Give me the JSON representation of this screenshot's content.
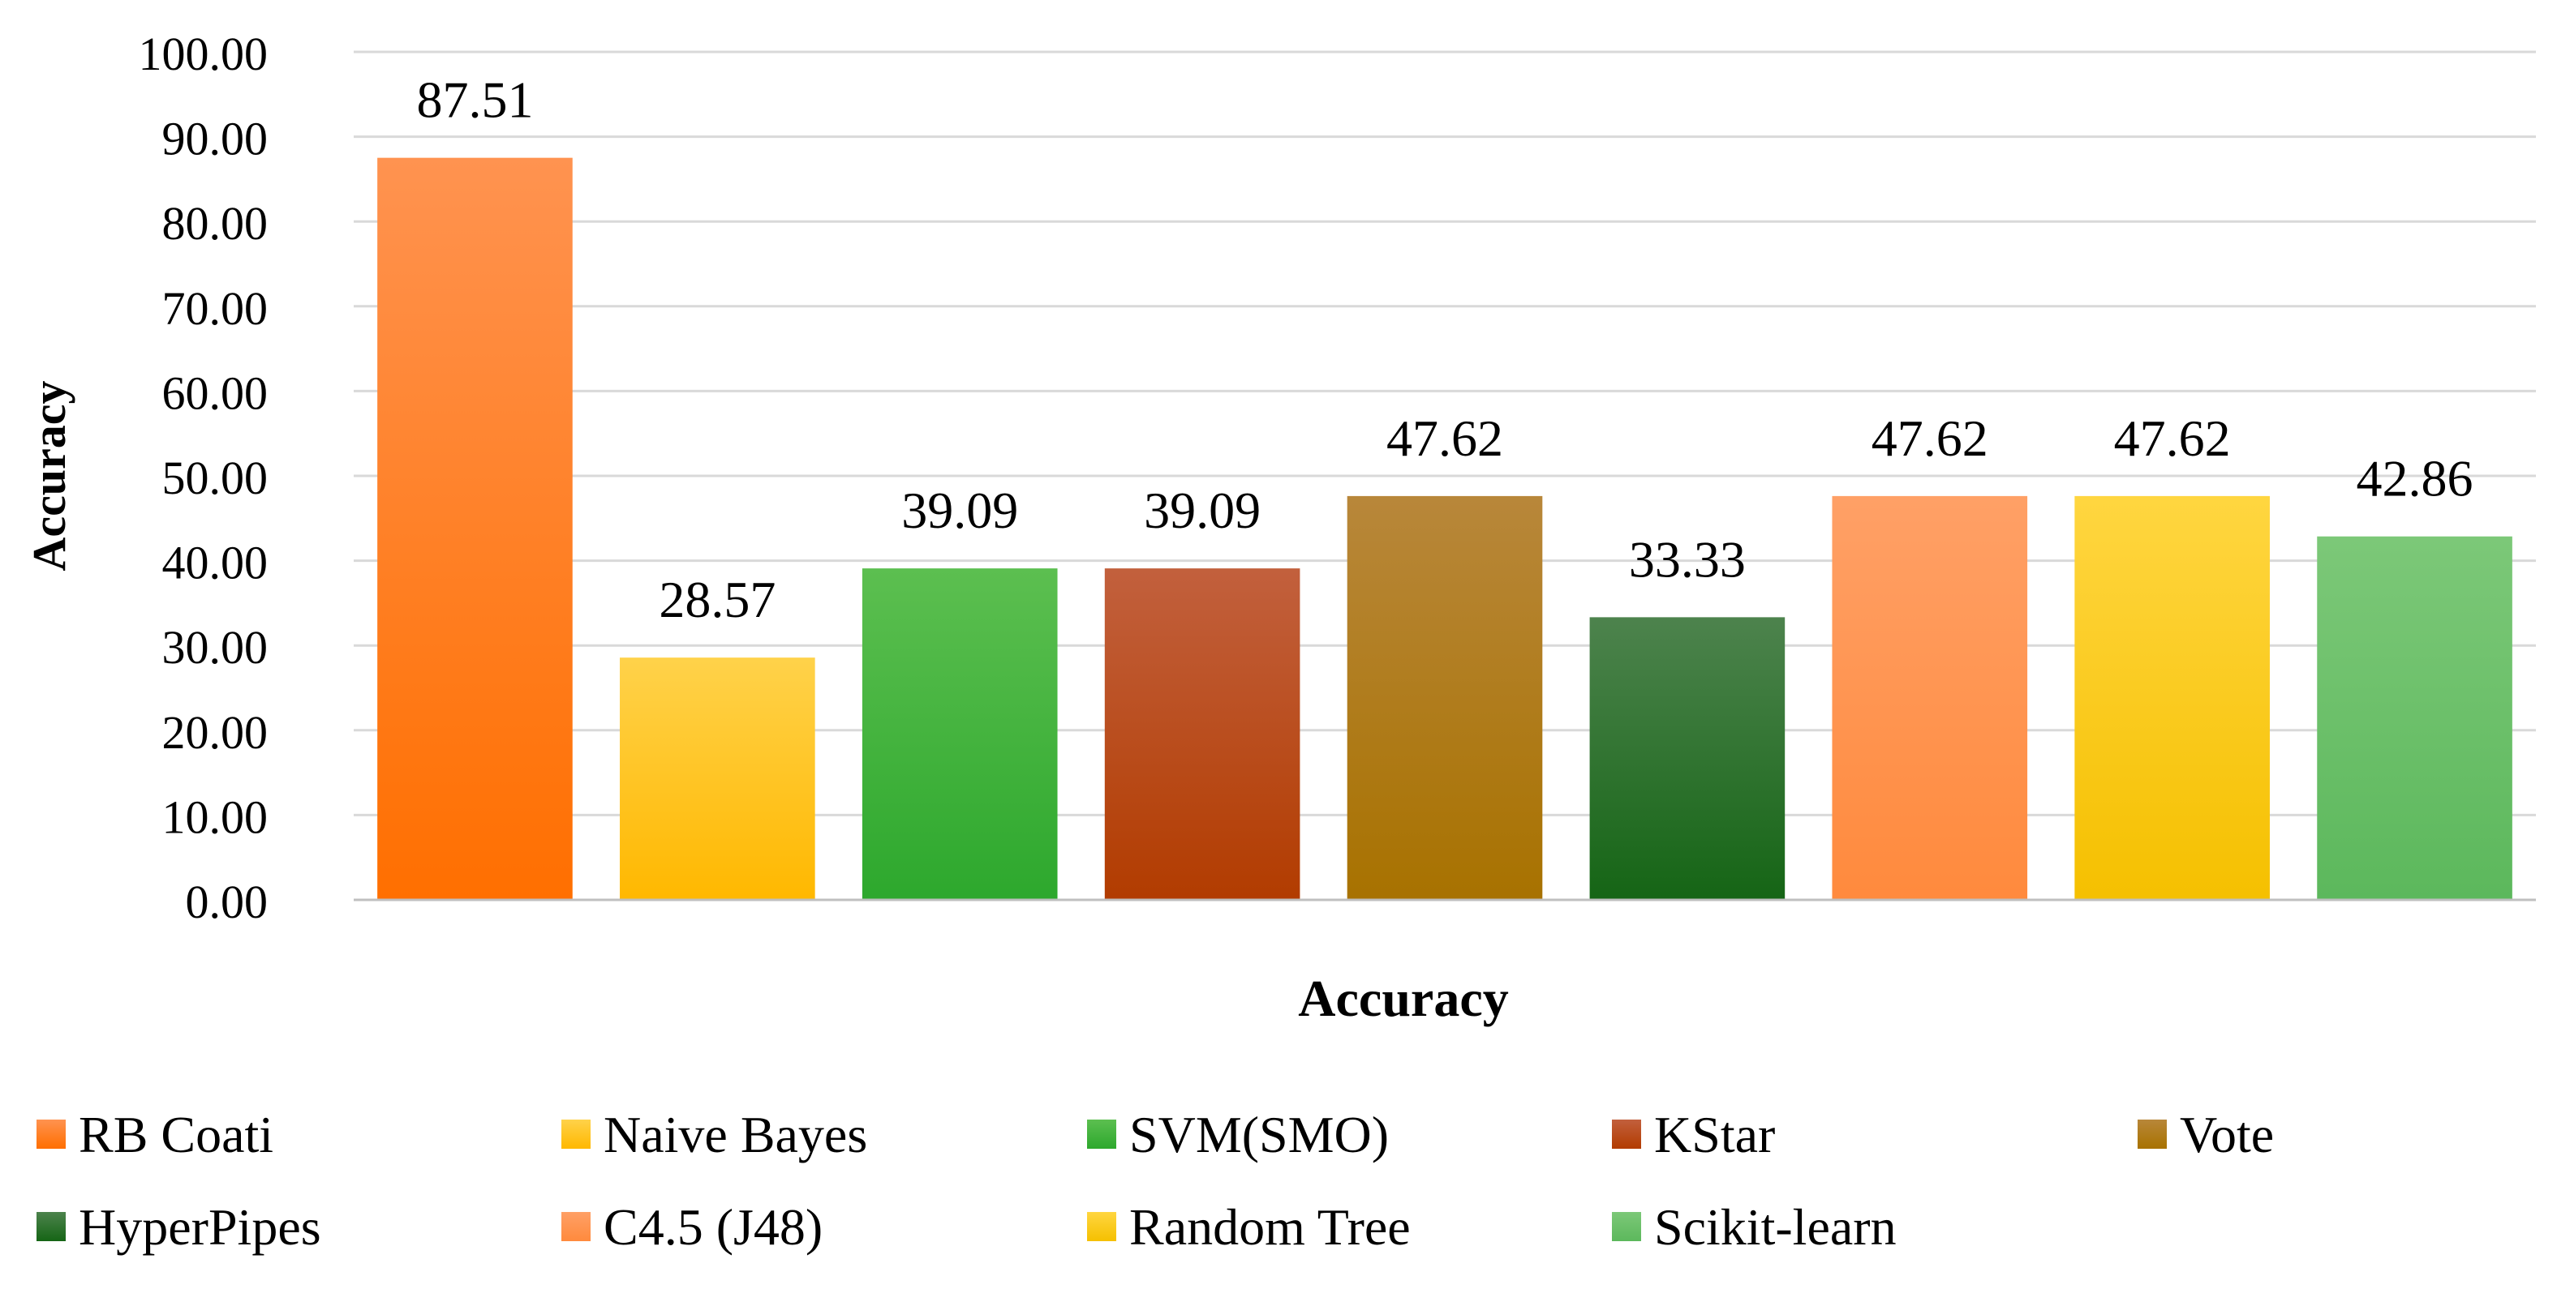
{
  "chart_data": {
    "type": "bar",
    "title": "",
    "xlabel": "Accuracy",
    "ylabel": "Accuracy",
    "ylim": [
      0,
      100
    ],
    "ytick_step": 10,
    "ytick_labels": [
      "0.00",
      "10.00",
      "20.00",
      "30.00",
      "40.00",
      "50.00",
      "60.00",
      "70.00",
      "80.00",
      "90.00",
      "100.00"
    ],
    "grid": true,
    "legend_position": "bottom",
    "series": [
      {
        "name": "RB Coati",
        "value": 87.51,
        "label": "87.51",
        "color": "#ff6f00",
        "light": "#ff9350"
      },
      {
        "name": "Naive Bayes",
        "value": 28.57,
        "label": "28.57",
        "color": "#ffb800",
        "light": "#ffd24a"
      },
      {
        "name": "SVM(SMO)",
        "value": 39.09,
        "label": "39.09",
        "color": "#2da82d",
        "light": "#5cbf50"
      },
      {
        "name": "KStar",
        "value": 39.09,
        "label": "39.09",
        "color": "#b23c00",
        "light": "#c2603d"
      },
      {
        "name": "Vote",
        "value": 47.62,
        "label": "47.62",
        "color": "#a87200",
        "light": "#b8873a"
      },
      {
        "name": "HyperPipes",
        "value": 33.33,
        "label": "33.33",
        "color": "#156515",
        "light": "#4d834d"
      },
      {
        "name": "C4.5 (J48)",
        "value": 47.62,
        "label": "47.62",
        "color": "#ff8a3d",
        "light": "#ffa066"
      },
      {
        "name": "Random Tree",
        "value": 47.62,
        "label": "47.62",
        "color": "#f5c000",
        "light": "#ffd640"
      },
      {
        "name": "Scikit-learn",
        "value": 42.86,
        "label": "42.86",
        "color": "#5cb85c",
        "light": "#7cc878"
      }
    ]
  }
}
